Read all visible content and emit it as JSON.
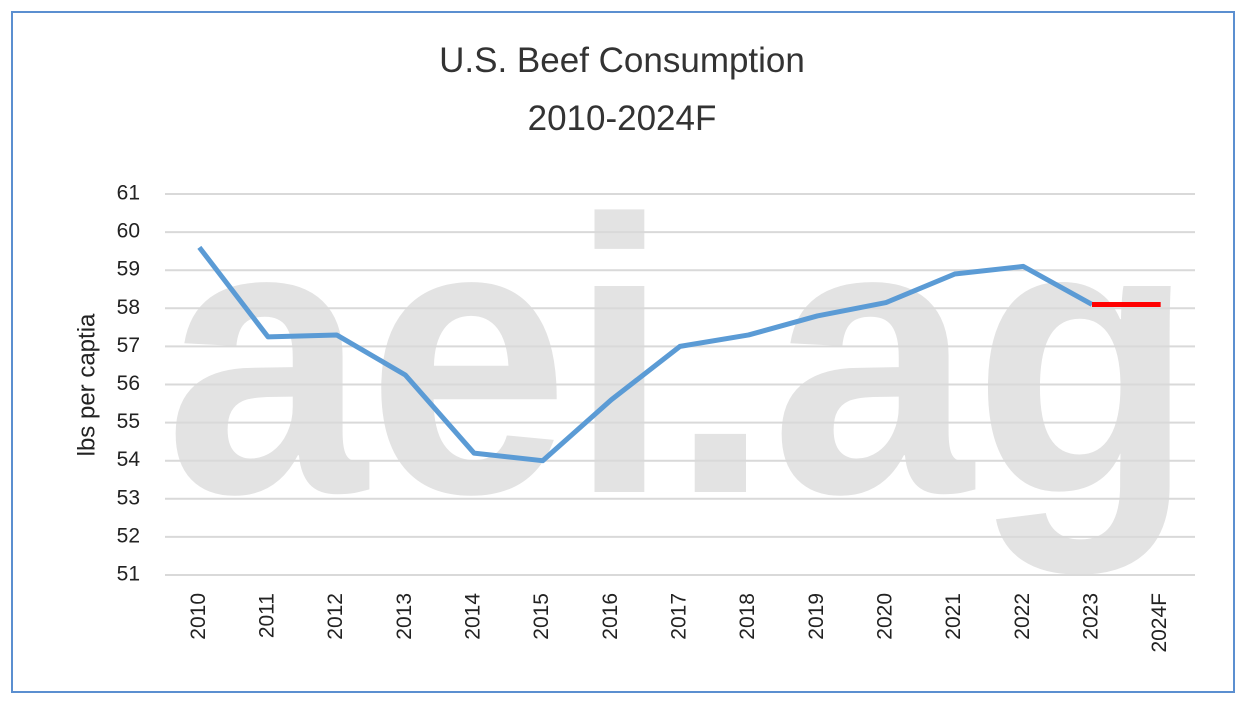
{
  "chart_data": {
    "type": "line",
    "title": [
      "U.S. Beef Consumption",
      "2010-2024F"
    ],
    "watermark": "aei.ag",
    "y_label": "lbs per captia",
    "categories": [
      "2010",
      "2011",
      "2012",
      "2013",
      "2014",
      "2015",
      "2016",
      "2017",
      "2018",
      "2019",
      "2020",
      "2021",
      "2022",
      "2023",
      "2024F"
    ],
    "series": [
      {
        "color": "#5b9bd5",
        "values": [
          59.6,
          57.25,
          57.3,
          56.25,
          54.2,
          54.0,
          55.6,
          57.0,
          57.3,
          57.8,
          58.15,
          58.9,
          59.1,
          58.1,
          null
        ]
      },
      {
        "color": "#ff0000",
        "values": [
          null,
          null,
          null,
          null,
          null,
          null,
          null,
          null,
          null,
          null,
          null,
          null,
          null,
          58.1,
          58.1
        ]
      }
    ],
    "ylim": [
      51,
      61
    ],
    "yticks": [
      51,
      52,
      53,
      54,
      55,
      56,
      57,
      58,
      59,
      60,
      61
    ],
    "grid": true
  }
}
